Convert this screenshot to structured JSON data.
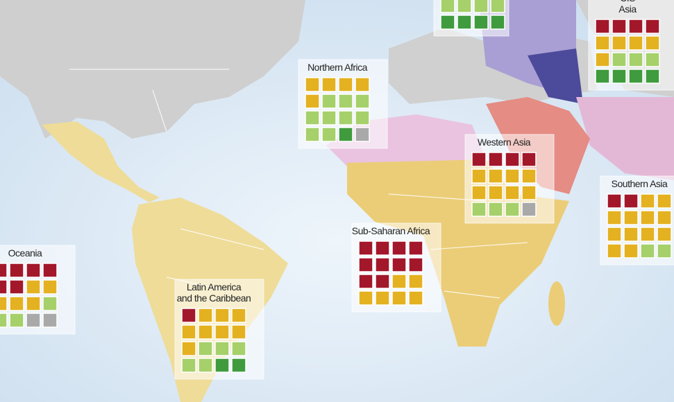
{
  "status_colors": {
    "R": "#a3172b",
    "O": "#e4b120",
    "L": "#a6d06a",
    "G": "#3f9b3d",
    "X": "#a9a9a9"
  },
  "regions": [
    {
      "label": [],
      "rows": [
        [
          "L",
          "L",
          "L",
          "L"
        ],
        [
          "G",
          "G",
          "G",
          "G"
        ]
      ]
    },
    {
      "label": [
        "CIS",
        "Asia"
      ],
      "rows": [
        [
          "R",
          "R",
          "R",
          "R"
        ],
        [
          "O",
          "O",
          "O",
          "O"
        ],
        [
          "O",
          "L",
          "L",
          "L"
        ],
        [
          "G",
          "G",
          "G",
          "G"
        ]
      ]
    },
    {
      "label": [
        "Northern Africa"
      ],
      "rows": [
        [
          "O",
          "O",
          "O",
          "O"
        ],
        [
          "O",
          "L",
          "L",
          "L"
        ],
        [
          "L",
          "L",
          "L",
          "L"
        ],
        [
          "L",
          "L",
          "G",
          "X"
        ]
      ]
    },
    {
      "label": [
        "Western Asia"
      ],
      "rows": [
        [
          "R",
          "R",
          "R",
          "R"
        ],
        [
          "O",
          "O",
          "O",
          "O"
        ],
        [
          "O",
          "O",
          "O",
          "O"
        ],
        [
          "L",
          "L",
          "L",
          "X"
        ]
      ]
    },
    {
      "label": [
        "Southern Asia"
      ],
      "rows": [
        [
          "R",
          "R",
          "O",
          "O"
        ],
        [
          "O",
          "O",
          "O",
          "O"
        ],
        [
          "O",
          "O",
          "O",
          "O"
        ],
        [
          "O",
          "O",
          "L",
          "L"
        ]
      ]
    },
    {
      "label": [
        "Sub-Saharan Africa"
      ],
      "rows": [
        [
          "R",
          "R",
          "R",
          "R"
        ],
        [
          "R",
          "R",
          "R",
          "R"
        ],
        [
          "R",
          "R",
          "O",
          "O"
        ],
        [
          "O",
          "O",
          "O",
          "O"
        ]
      ]
    },
    {
      "label": [
        "Oceania"
      ],
      "rows": [
        [
          "R",
          "R",
          "R",
          "R"
        ],
        [
          "R",
          "R",
          "O",
          "O"
        ],
        [
          "O",
          "O",
          "O",
          "L"
        ],
        [
          "L",
          "L",
          "X",
          "X"
        ]
      ]
    },
    {
      "label": [
        "Latin America",
        "and the Caribbean"
      ],
      "rows": [
        [
          "R",
          "O",
          "O",
          "O"
        ],
        [
          "O",
          "O",
          "O",
          "O"
        ],
        [
          "O",
          "L",
          "L",
          "L"
        ],
        [
          "L",
          "L",
          "G",
          "G"
        ]
      ]
    }
  ]
}
